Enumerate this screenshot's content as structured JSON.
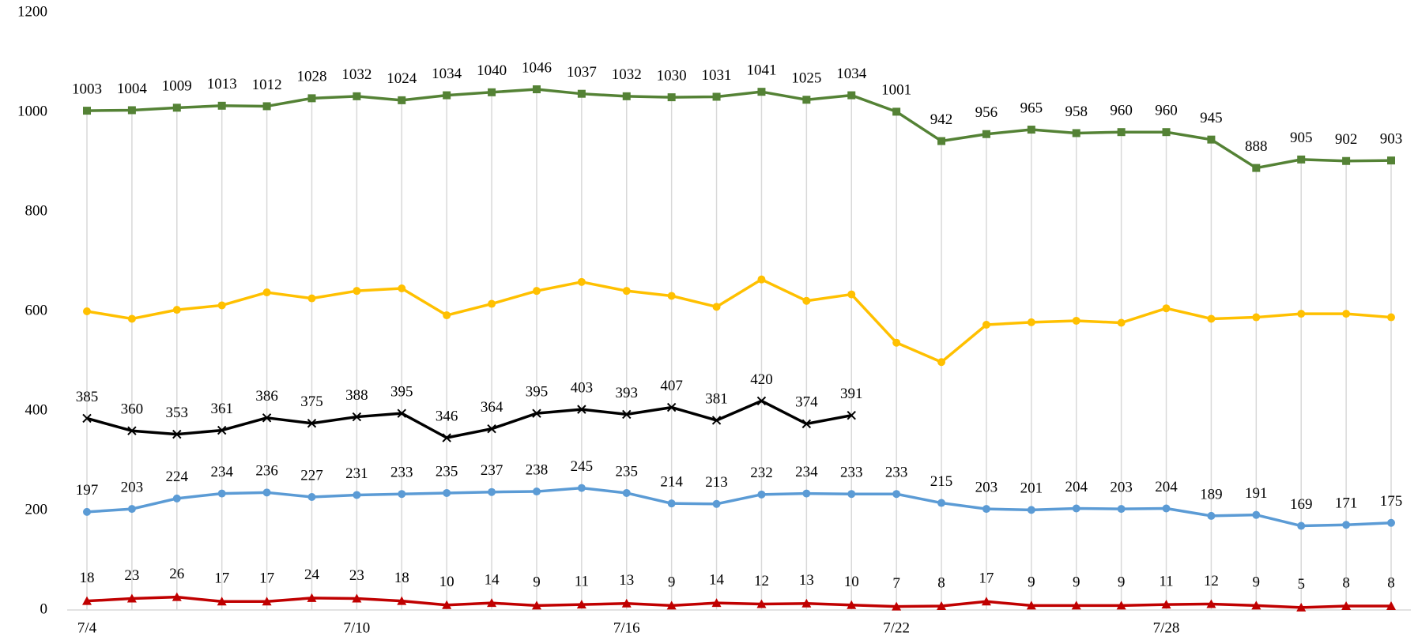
{
  "chart_data": {
    "type": "line",
    "categories": [
      "7/4",
      null,
      null,
      null,
      null,
      null,
      "7/10",
      null,
      null,
      null,
      null,
      null,
      "7/16",
      null,
      null,
      null,
      null,
      null,
      "7/22",
      null,
      null,
      null,
      null,
      null,
      "7/28",
      null,
      null,
      null,
      null,
      null
    ],
    "ylim": [
      0,
      1200
    ],
    "yticks": [
      0,
      200,
      400,
      600,
      800,
      1000,
      1200
    ],
    "drop_lines": true,
    "series": [
      {
        "color": "#548235",
        "marker": "square",
        "show_labels": true,
        "values": [
          1003,
          1004,
          1009,
          1013,
          1012,
          1028,
          1032,
          1024,
          1034,
          1040,
          1046,
          1037,
          1032,
          1030,
          1031,
          1041,
          1025,
          1034,
          1001,
          942,
          956,
          965,
          958,
          960,
          960,
          945,
          888,
          905,
          902,
          903
        ]
      },
      {
        "color": "#ffc000",
        "marker": "circle",
        "show_labels": false,
        "values": [
          600,
          585,
          603,
          612,
          638,
          626,
          641,
          646,
          592,
          615,
          641,
          659,
          641,
          631,
          609,
          664,
          621,
          634,
          537,
          498,
          573,
          578,
          581,
          577,
          606,
          585,
          588,
          595,
          595,
          588
        ]
      },
      {
        "color": "#000000",
        "marker": "x",
        "show_labels": true,
        "values": [
          385,
          360,
          353,
          361,
          386,
          375,
          388,
          395,
          346,
          364,
          395,
          403,
          393,
          407,
          381,
          420,
          374,
          391,
          null,
          null,
          null,
          null,
          null,
          null,
          null,
          null,
          null,
          null,
          null,
          null
        ]
      },
      {
        "color": "#5b9bd5",
        "marker": "circle",
        "show_labels": true,
        "values": [
          197,
          203,
          224,
          234,
          236,
          227,
          231,
          233,
          235,
          237,
          238,
          245,
          235,
          214,
          213,
          232,
          234,
          233,
          233,
          215,
          203,
          201,
          204,
          203,
          204,
          189,
          191,
          169,
          171,
          175
        ]
      },
      {
        "color": "#c00000",
        "marker": "triangle",
        "show_labels": true,
        "values": [
          18,
          23,
          26,
          17,
          17,
          24,
          23,
          18,
          10,
          14,
          9,
          11,
          13,
          9,
          14,
          12,
          13,
          10,
          7,
          8,
          17,
          9,
          9,
          9,
          11,
          12,
          9,
          5,
          8,
          8
        ]
      }
    ]
  }
}
